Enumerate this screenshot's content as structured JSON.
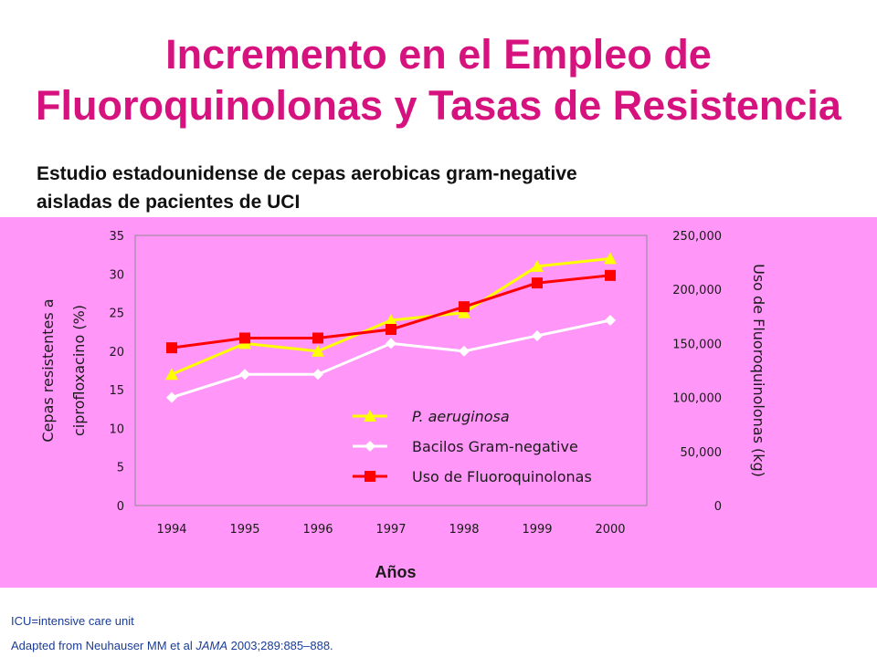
{
  "title_line1": "Incremento en el Empleo de",
  "title_line2": "Fluoroquinolonas y Tasas de Resistencia",
  "subtitle_line1": "Estudio estadounidense de cepas aerobicas gram-negative",
  "subtitle_line2": "aisladas de pacientes de UCI",
  "footnote1": "ICU=intensive care unit",
  "footnote2_pre": "Adapted from Neuhauser MM et al ",
  "footnote2_journal": "JAMA",
  "footnote2_post": " 2003;289:885–888.",
  "colors": {
    "title": "#d6127e",
    "panel_bg": "#ff96f8",
    "p_aeruginosa": "#ffff00",
    "gram_negative": "#ffffff",
    "fluoroquinolonas": "#ff0000",
    "footnote": "#1a3c98"
  },
  "chart_data": {
    "type": "line",
    "categories": [
      "1994",
      "1995",
      "1996",
      "1997",
      "1998",
      "1999",
      "2000"
    ],
    "xlabel": "Años",
    "ylabel_left_line1": "Cepas resistentes a",
    "ylabel_left_line2": "ciprofloxacino (%)",
    "ylabel_right": "Uso de Fluoroquinolonas (kg)",
    "ylim_left": [
      0,
      35
    ],
    "yticks_left": [
      "0",
      "5",
      "10",
      "15",
      "20",
      "25",
      "30",
      "35"
    ],
    "yticks_right": [
      {
        "value": 0,
        "label": "0"
      },
      {
        "value": 50000,
        "label": "50,000"
      },
      {
        "value": 100000,
        "label": "100,000"
      },
      {
        "value": 150000,
        "label": "150,000"
      },
      {
        "value": 200000,
        "label": "200,000"
      },
      {
        "value": 250000,
        "label": "250,000"
      }
    ],
    "legend_position": "bottom-center",
    "series": [
      {
        "name": "P. aeruginosa",
        "axis": "left",
        "marker": "triangle",
        "color": "#ffff00",
        "values": [
          17,
          21,
          20,
          24,
          25,
          31,
          32
        ]
      },
      {
        "name": "Bacilos Gram-negative",
        "axis": "left",
        "marker": "diamond",
        "color": "#ffffff",
        "values": [
          14,
          17,
          17,
          21,
          20,
          22,
          24
        ]
      },
      {
        "name": "Uso de Fluoroquinolonas",
        "axis": "right",
        "marker": "square",
        "color": "#ff0000",
        "values": [
          146000,
          155000,
          155000,
          163000,
          184000,
          206000,
          213000
        ]
      }
    ]
  }
}
